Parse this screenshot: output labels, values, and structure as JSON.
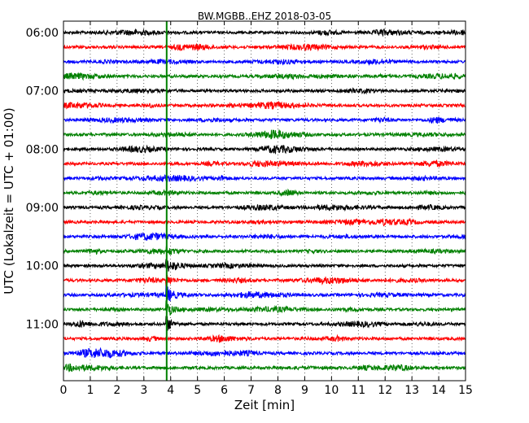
{
  "chart_data": {
    "type": "line",
    "title": "BW.MGBB..EHZ 2018-03-05",
    "xlabel": "Zeit  [min]",
    "ylabel": "UTC (Lokalzeit = UTC + 01:00)",
    "xlim": [
      0,
      15
    ],
    "x_ticks": [
      "0",
      "1",
      "2",
      "3",
      "4",
      "5",
      "6",
      "7",
      "8",
      "9",
      "10",
      "11",
      "12",
      "13",
      "14",
      "15"
    ],
    "y_tick_labels": [
      "06:00",
      "07:00",
      "08:00",
      "09:00",
      "10:00",
      "11:00"
    ],
    "grid": true,
    "trace_interval_minutes": 15,
    "trace_start": "06:00",
    "trace_colors": [
      "#000000",
      "#ff0000",
      "#0000ff",
      "#008000"
    ],
    "event_marker_minute": 3.85,
    "event_arrival_trace": "09:45",
    "event_peak_trace": "10:45",
    "traces": [
      {
        "time": "06:00",
        "color": "#000000"
      },
      {
        "time": "06:15",
        "color": "#ff0000"
      },
      {
        "time": "06:30",
        "color": "#0000ff"
      },
      {
        "time": "06:45",
        "color": "#008000"
      },
      {
        "time": "07:00",
        "color": "#000000"
      },
      {
        "time": "07:15",
        "color": "#ff0000"
      },
      {
        "time": "07:30",
        "color": "#0000ff"
      },
      {
        "time": "07:45",
        "color": "#008000"
      },
      {
        "time": "08:00",
        "color": "#000000"
      },
      {
        "time": "08:15",
        "color": "#ff0000"
      },
      {
        "time": "08:30",
        "color": "#0000ff"
      },
      {
        "time": "08:45",
        "color": "#008000"
      },
      {
        "time": "09:00",
        "color": "#000000"
      },
      {
        "time": "09:15",
        "color": "#ff0000"
      },
      {
        "time": "09:30",
        "color": "#0000ff"
      },
      {
        "time": "09:45",
        "color": "#008000"
      },
      {
        "time": "10:00",
        "color": "#000000"
      },
      {
        "time": "10:15",
        "color": "#ff0000"
      },
      {
        "time": "10:30",
        "color": "#0000ff"
      },
      {
        "time": "10:45",
        "color": "#008000"
      },
      {
        "time": "11:00",
        "color": "#000000"
      },
      {
        "time": "11:15",
        "color": "#ff0000"
      },
      {
        "time": "11:30",
        "color": "#0000ff"
      },
      {
        "time": "11:45",
        "color": "#008000"
      }
    ]
  }
}
